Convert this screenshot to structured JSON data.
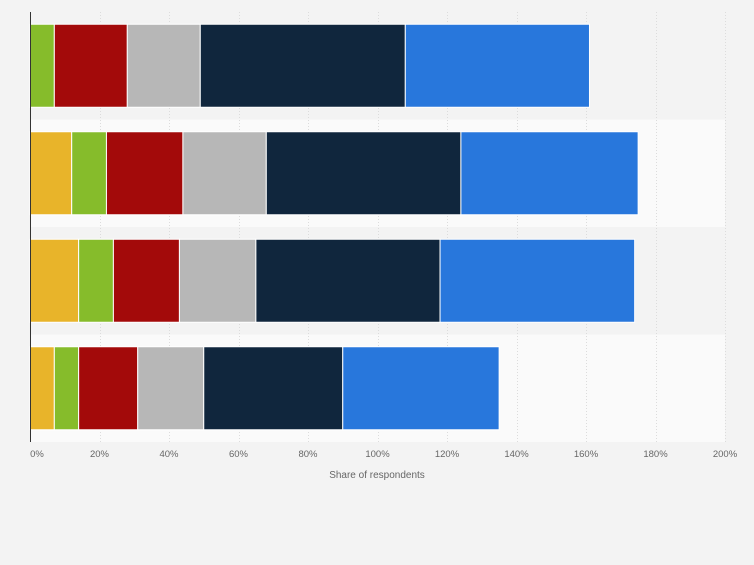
{
  "chart_data": {
    "type": "bar",
    "orientation": "horizontal",
    "stacked": true,
    "categories": [
      "",
      "",
      "",
      ""
    ],
    "series": [
      {
        "color": "#e8b42a",
        "values": [
          0,
          12,
          14,
          7
        ]
      },
      {
        "color": "#86bc2b",
        "values": [
          7,
          10,
          10,
          7
        ]
      },
      {
        "color": "#a30a0a",
        "values": [
          21,
          22,
          19,
          17
        ]
      },
      {
        "color": "#b7b7b7",
        "values": [
          21,
          24,
          22,
          19
        ]
      },
      {
        "color": "#10263d",
        "values": [
          59,
          56,
          53,
          40
        ]
      },
      {
        "color": "#2877dc",
        "values": [
          53,
          51,
          56,
          45
        ]
      }
    ],
    "xlabel": "Share of respondents",
    "ylabel": "",
    "xlim": [
      0,
      200
    ],
    "xticks": [
      "0%",
      "20%",
      "40%",
      "60%",
      "80%",
      "100%",
      "120%",
      "140%",
      "160%",
      "180%",
      "200%"
    ],
    "grid": true,
    "legend": "none"
  }
}
